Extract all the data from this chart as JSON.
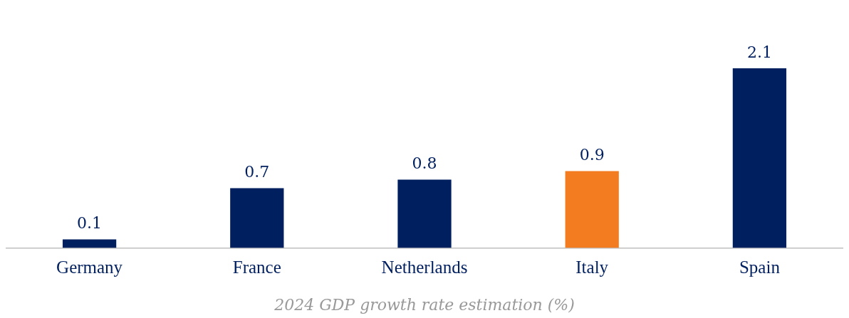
{
  "chart_data": {
    "type": "bar",
    "xlabel": "2024 GDP growth rate estimation (%)",
    "categories": [
      "Germany",
      "France",
      "Netherlands",
      "Italy",
      "Spain"
    ],
    "values": [
      0.1,
      0.7,
      0.8,
      0.9,
      2.1
    ],
    "colors": [
      "#001f5f",
      "#001f5f",
      "#001f5f",
      "#f47c20",
      "#001f5f"
    ],
    "data_labels": true,
    "grid": false,
    "legend": false
  }
}
